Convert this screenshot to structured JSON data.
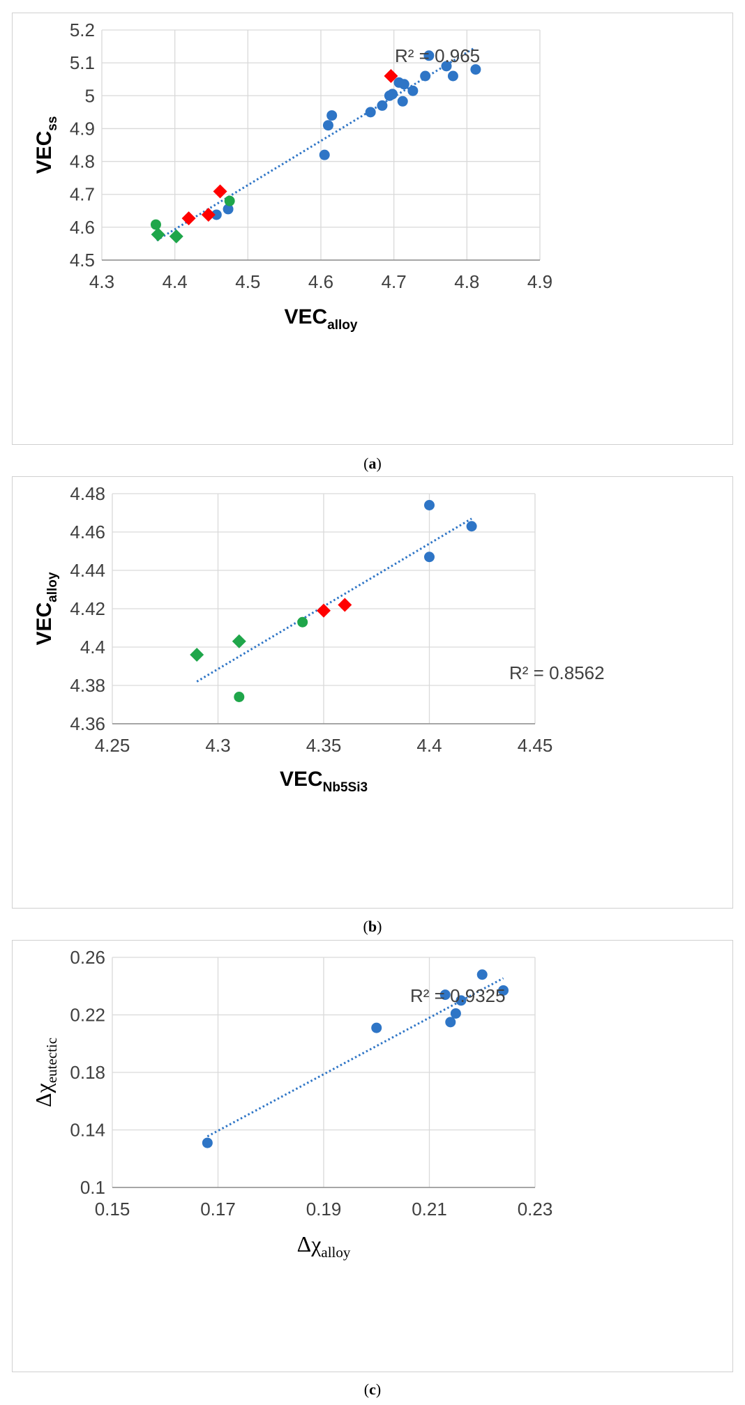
{
  "chart_data": [
    {
      "type": "scatter",
      "panel": "a",
      "caption_letter": "a",
      "xlabel_main": "VEC",
      "xlabel_sub": "alloy",
      "ylabel_main": "VEC",
      "ylabel_sub": "ss",
      "xlim": [
        4.3,
        4.9
      ],
      "ylim": [
        4.5,
        5.2
      ],
      "xticks": [
        "4.3",
        "4.4",
        "4.5",
        "4.6",
        "4.7",
        "4.8",
        "4.9"
      ],
      "yticks": [
        "4.5",
        "4.6",
        "4.7",
        "4.8",
        "4.9",
        "5",
        "5.1",
        "5.2"
      ],
      "grid": true,
      "r2_label": "R² = 0.965",
      "trendline": {
        "x": [
          4.375,
          4.81
        ],
        "y": [
          4.56,
          5.145
        ]
      },
      "colors": {
        "blue": "#2e75c6",
        "red": "#ff0000",
        "green": "#1fa64a"
      },
      "series": [
        {
          "marker": "circle",
          "color": "blue",
          "points": [
            [
              4.457,
              4.638
            ],
            [
              4.473,
              4.655
            ],
            [
              4.605,
              4.82
            ],
            [
              4.61,
              4.91
            ],
            [
              4.615,
              4.94
            ],
            [
              4.668,
              4.95
            ],
            [
              4.684,
              4.97
            ],
            [
              4.694,
              5.0
            ],
            [
              4.698,
              5.005
            ],
            [
              4.707,
              5.04
            ],
            [
              4.712,
              4.983
            ],
            [
              4.714,
              5.035
            ],
            [
              4.726,
              5.015
            ],
            [
              4.743,
              5.06
            ],
            [
              4.748,
              5.122
            ],
            [
              4.772,
              5.09
            ],
            [
              4.781,
              5.06
            ],
            [
              4.812,
              5.08
            ]
          ]
        },
        {
          "marker": "diamond",
          "color": "red",
          "points": [
            [
              4.419,
              4.627
            ],
            [
              4.446,
              4.638
            ],
            [
              4.462,
              4.709
            ],
            [
              4.696,
              5.06
            ]
          ]
        },
        {
          "marker": "circle",
          "color": "green",
          "points": [
            [
              4.374,
              4.608
            ],
            [
              4.475,
              4.68
            ]
          ]
        },
        {
          "marker": "diamond",
          "color": "green",
          "points": [
            [
              4.377,
              4.578
            ],
            [
              4.402,
              4.572
            ]
          ]
        }
      ]
    },
    {
      "type": "scatter",
      "panel": "b",
      "caption_letter": "b",
      "xlabel_main": "VEC",
      "xlabel_sub": "Nb5Si3",
      "ylabel_main": "VEC",
      "ylabel_sub": "alloy",
      "xlim": [
        4.25,
        4.45
      ],
      "ylim": [
        4.36,
        4.48
      ],
      "xticks": [
        "4.25",
        "4.3",
        "4.35",
        "4.4",
        "4.45"
      ],
      "yticks": [
        "4.36",
        "4.38",
        "4.4",
        "4.42",
        "4.44",
        "4.46",
        "4.48"
      ],
      "grid": true,
      "r2_label": "R² = 0.8562",
      "trendline": {
        "x": [
          4.29,
          4.42
        ],
        "y": [
          4.382,
          4.467
        ]
      },
      "colors": {
        "blue": "#2e75c6",
        "red": "#ff0000",
        "green": "#1fa64a"
      },
      "series": [
        {
          "marker": "circle",
          "color": "blue",
          "points": [
            [
              4.4,
              4.474
            ],
            [
              4.4,
              4.447
            ],
            [
              4.42,
              4.463
            ]
          ]
        },
        {
          "marker": "diamond",
          "color": "red",
          "points": [
            [
              4.35,
              4.419
            ],
            [
              4.36,
              4.422
            ]
          ]
        },
        {
          "marker": "circle",
          "color": "green",
          "points": [
            [
              4.34,
              4.413
            ],
            [
              4.31,
              4.374
            ]
          ]
        },
        {
          "marker": "diamond",
          "color": "green",
          "points": [
            [
              4.29,
              4.396
            ],
            [
              4.31,
              4.403
            ]
          ]
        }
      ]
    },
    {
      "type": "scatter",
      "panel": "c",
      "caption_letter": "c",
      "xlabel_main": "Δχ",
      "xlabel_sub": "alloy",
      "ylabel_main": "Δχ",
      "ylabel_sub": "eutectic",
      "xlim": [
        0.15,
        0.23
      ],
      "ylim": [
        0.1,
        0.26
      ],
      "xticks": [
        "0.15",
        "0.17",
        "0.19",
        "0.21",
        "0.23"
      ],
      "yticks": [
        "0.1",
        "0.14",
        "0.18",
        "0.22",
        "0.26"
      ],
      "grid": true,
      "r2_label": "R² = 0.9325",
      "trendline": {
        "x": [
          0.168,
          0.224
        ],
        "y": [
          0.1355,
          0.2455
        ]
      },
      "colors": {
        "blue": "#2e75c6"
      },
      "series": [
        {
          "marker": "circle",
          "color": "blue",
          "points": [
            [
              0.168,
              0.131
            ],
            [
              0.2,
              0.211
            ],
            [
              0.213,
              0.234
            ],
            [
              0.214,
              0.215
            ],
            [
              0.215,
              0.221
            ],
            [
              0.216,
              0.23
            ],
            [
              0.22,
              0.248
            ],
            [
              0.224,
              0.237
            ]
          ]
        }
      ]
    }
  ]
}
